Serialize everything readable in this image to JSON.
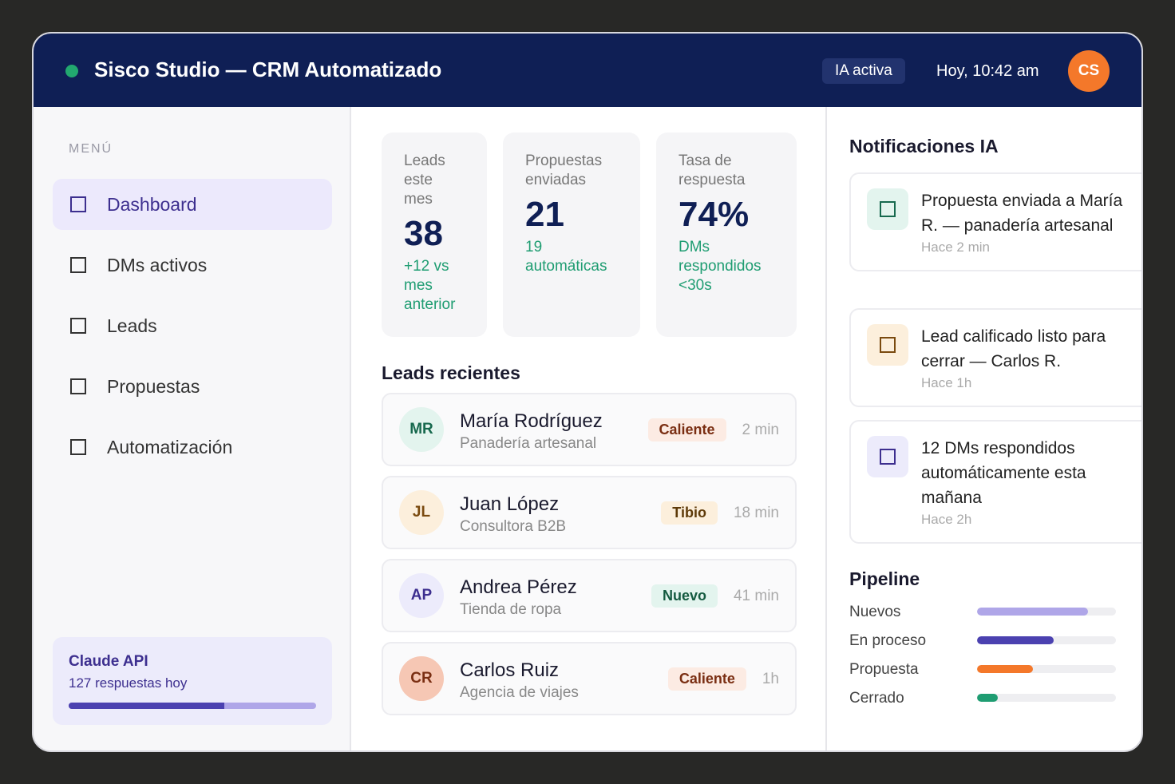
{
  "header": {
    "title": "Sisco Studio — CRM Automatizado",
    "status": "IA activa",
    "time": "Hoy, 10:42 am",
    "avatar": "CS"
  },
  "sidebar": {
    "menu_label": "MENÚ",
    "active": 0,
    "items": [
      "Dashboard",
      "DMs activos",
      "Leads",
      "Propuestas",
      "Automatización"
    ],
    "api": {
      "title": "Claude API",
      "subtitle": "127 respuestas hoy",
      "usage": 63
    }
  },
  "stats": [
    {
      "label": "Leads este mes",
      "value": "38",
      "note": "+12 vs mes anterior"
    },
    {
      "label": "Propuestas enviadas",
      "value": "21",
      "note": "19 automáticas"
    },
    {
      "label": "Tasa de respuesta",
      "value": "74%",
      "note": "DMs respondidos <30s"
    }
  ],
  "leads": {
    "title": "Leads recientes",
    "rows": [
      {
        "initials": "MR",
        "name": "María Rodríguez",
        "company": "Panadería artesanal",
        "status": "Caliente",
        "time": "2 min",
        "avatar_bg": "#e3f4ee",
        "avatar_fg": "#17694e",
        "badge_bg": "#fcebe3",
        "badge_fg": "#7a2e12"
      },
      {
        "initials": "JL",
        "name": "Juan López",
        "company": "Consultora B2B",
        "status": "Tibio",
        "time": "18 min",
        "avatar_bg": "#fcefdc",
        "avatar_fg": "#7a4a0f",
        "badge_bg": "#fcefdc",
        "badge_fg": "#5e3a08"
      },
      {
        "initials": "AP",
        "name": "Andrea Pérez",
        "company": "Tienda de ropa",
        "status": "Nuevo",
        "time": "41 min",
        "avatar_bg": "#ecebfb",
        "avatar_fg": "#3d2f8f",
        "badge_bg": "#e3f4ee",
        "badge_fg": "#145a40"
      },
      {
        "initials": "CR",
        "name": "Carlos Ruiz",
        "company": "Agencia de viajes",
        "status": "Caliente",
        "time": "1h",
        "avatar_bg": "#f6c7b4",
        "avatar_fg": "#7a2e12",
        "badge_bg": "#fcebe3",
        "badge_fg": "#7a2e12"
      }
    ]
  },
  "notifications": {
    "title": "Notificaciones IA",
    "items": [
      {
        "text": "Propuesta enviada a María R. — panadería artesanal",
        "time": "Hace 2 min",
        "bg": "#e3f4ee",
        "fg": "#17694e"
      },
      {
        "text": "Lead calificado listo para cerrar — Carlos R.",
        "time": "Hace 1h",
        "bg": "#fcefdc",
        "fg": "#7a4a0f"
      },
      {
        "text": "12 DMs respondidos automáticamente esta mañana",
        "time": "Hace 2h",
        "bg": "#ecebfb",
        "fg": "#3d2f8f"
      }
    ]
  },
  "pipeline": {
    "title": "Pipeline",
    "stages": [
      {
        "name": "Nuevos",
        "value": 80,
        "color": "#afa6e8"
      },
      {
        "name": "En proceso",
        "value": 55,
        "color": "#4b41b0"
      },
      {
        "name": "Propuesta",
        "value": 40,
        "color": "#f4782a"
      },
      {
        "name": "Cerrado",
        "value": 15,
        "color": "#1f9d72"
      }
    ]
  }
}
